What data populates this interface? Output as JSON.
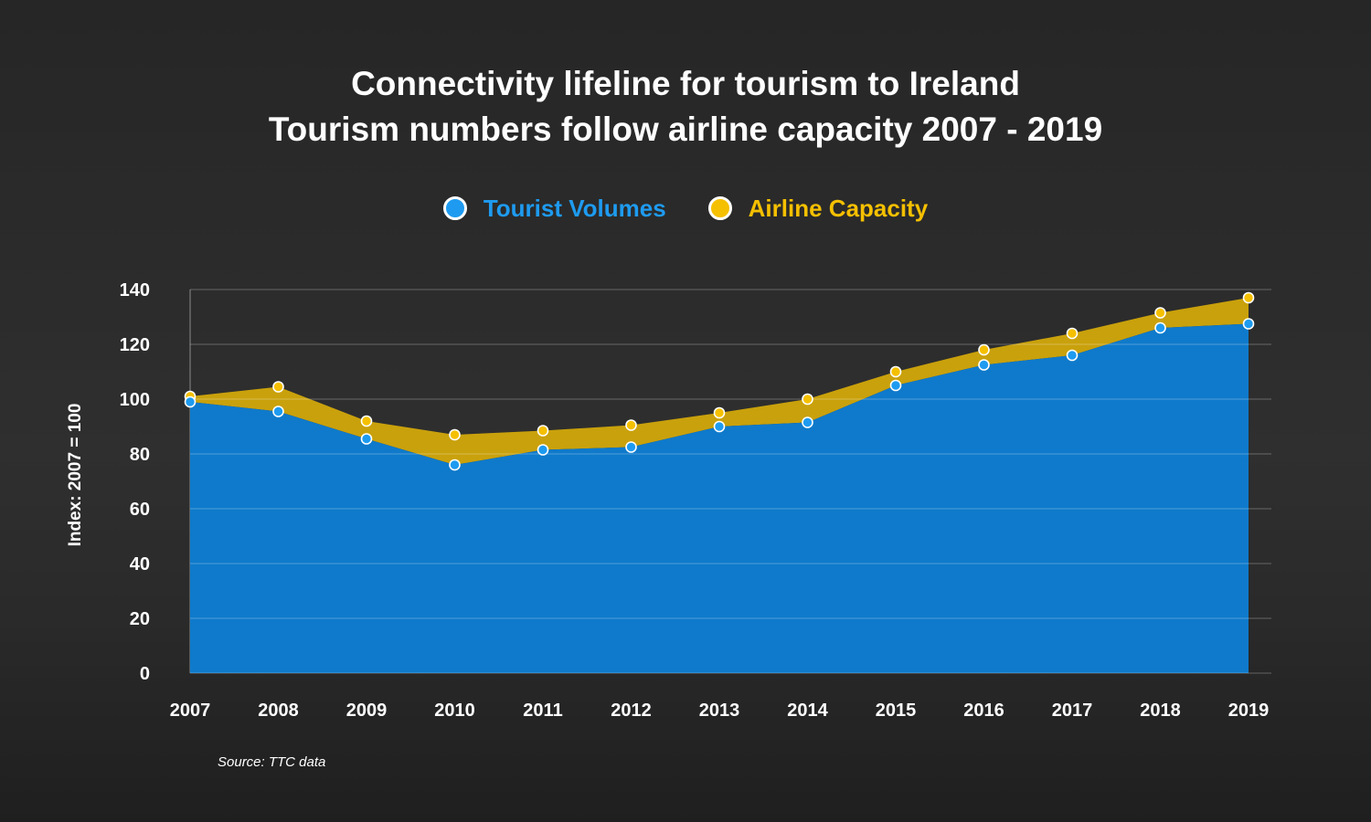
{
  "title_line1": "Connectivity lifeline for tourism to Ireland",
  "title_line2": "Tourism numbers follow airline capacity 2007 - 2019",
  "source": "Source: TTC data",
  "colors": {
    "tourist": "#0f7acb",
    "tourist_dot": "#1e9bf0",
    "airline": "#c9a10c",
    "airline_dot": "#f5c000"
  },
  "chart_data": {
    "type": "area",
    "title": "Connectivity lifeline for tourism to Ireland",
    "subtitle": "Tourism numbers follow airline capacity 2007 - 2019",
    "xlabel": "",
    "ylabel": "Index: 2007 = 100",
    "ylim": [
      0,
      140
    ],
    "yticks": [
      0,
      20,
      40,
      60,
      80,
      100,
      120,
      140
    ],
    "grid": true,
    "legend": "top-center",
    "categories": [
      "2007",
      "2008",
      "2009",
      "2010",
      "2011",
      "2012",
      "2013",
      "2014",
      "2015",
      "2016",
      "2017",
      "2018",
      "2019"
    ],
    "series": [
      {
        "name": "Tourist Volumes",
        "values": [
          99,
          95.5,
          85.5,
          76,
          81.5,
          82.5,
          90,
          91.5,
          105,
          112.5,
          116,
          126,
          127.5
        ]
      },
      {
        "name": "Airline Capacity",
        "values": [
          101,
          104.5,
          92,
          87,
          88.5,
          90.5,
          95,
          100,
          110,
          118,
          124,
          131.5,
          137
        ]
      }
    ]
  }
}
